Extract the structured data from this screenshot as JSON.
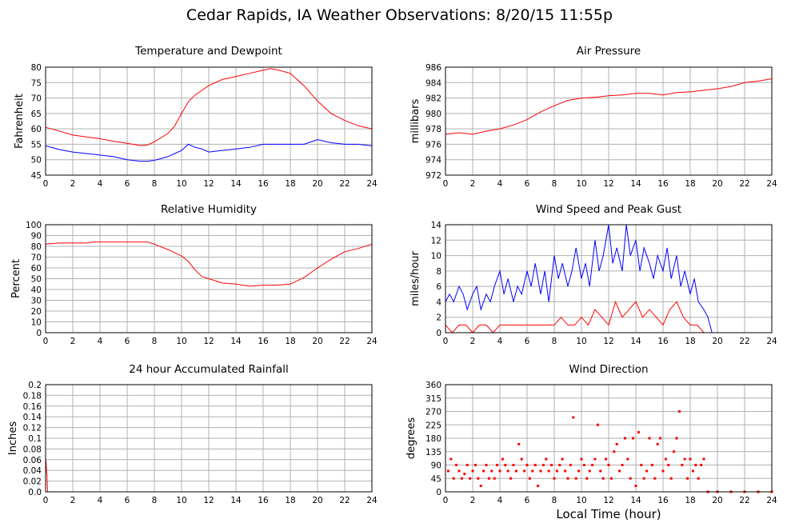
{
  "title": "Cedar Rapids, IA Weather Observations: 8/20/15 11:55p",
  "xaxis_title": "Local Time (hour)",
  "chart_data": [
    {
      "type": "line",
      "title": "Temperature and Dewpoint",
      "ylabel": "Fahrenheit",
      "xlim": [
        0,
        24
      ],
      "ylim": [
        45,
        80
      ],
      "xticks": [
        0,
        2,
        4,
        6,
        8,
        10,
        12,
        14,
        16,
        18,
        20,
        22,
        24
      ],
      "yticks": [
        45,
        50,
        55,
        60,
        65,
        70,
        75,
        80
      ],
      "grid": true,
      "series": [
        {
          "color": "#ff0000",
          "x": [
            0,
            1,
            2,
            3,
            4,
            5,
            6,
            7,
            7.5,
            8,
            9,
            9.5,
            10,
            10.5,
            11,
            12,
            13,
            14,
            15,
            16,
            16.5,
            17,
            18,
            19,
            20,
            21,
            22,
            23,
            24
          ],
          "y": [
            60.5,
            59.3,
            58,
            57.4,
            56.8,
            56,
            55.3,
            54.6,
            54.8,
            55.8,
            58.5,
            61,
            65,
            68.8,
            71,
            74,
            76,
            77,
            78,
            79,
            79.5,
            79.2,
            78,
            74,
            69,
            65,
            62.7,
            61,
            60
          ]
        },
        {
          "color": "#0000ff",
          "x": [
            0,
            1,
            2,
            3,
            4,
            5,
            6,
            7,
            7.5,
            8,
            9,
            9.5,
            10,
            10.5,
            11,
            11.5,
            12,
            13,
            14,
            15,
            16,
            17,
            18,
            19,
            20,
            21,
            22,
            23,
            24
          ],
          "y": [
            54.5,
            53.3,
            52.5,
            52,
            51.5,
            51,
            50,
            49.5,
            49.5,
            49.8,
            51,
            52,
            53,
            55,
            54,
            53.5,
            52.5,
            53,
            53.5,
            54,
            55,
            55,
            55,
            55,
            56.5,
            55.5,
            55,
            55,
            54.5
          ]
        }
      ]
    },
    {
      "type": "line",
      "title": "Air Pressure",
      "ylabel": "millibars",
      "xlim": [
        0,
        24
      ],
      "ylim": [
        972,
        986
      ],
      "xticks": [
        0,
        2,
        4,
        6,
        8,
        10,
        12,
        14,
        16,
        18,
        20,
        22,
        24
      ],
      "yticks": [
        972,
        974,
        976,
        978,
        980,
        982,
        984,
        986
      ],
      "grid": true,
      "series": [
        {
          "color": "#ff0000",
          "x": [
            0,
            1,
            2,
            3,
            4,
            5,
            6,
            7,
            8,
            9,
            10,
            11,
            12,
            13,
            14,
            15,
            16,
            17,
            18,
            19,
            20,
            21,
            22,
            23,
            24
          ],
          "y": [
            977.3,
            977.5,
            977.3,
            977.7,
            978,
            978.5,
            979.2,
            980.2,
            981,
            981.7,
            982,
            982.1,
            982.3,
            982.4,
            982.6,
            982.6,
            982.4,
            982.7,
            982.8,
            983,
            983.2,
            983.5,
            984,
            984.2,
            984.5
          ]
        }
      ]
    },
    {
      "type": "line",
      "title": "Relative Humidity",
      "ylabel": "Percent",
      "xlim": [
        0,
        24
      ],
      "ylim": [
        0,
        100
      ],
      "xticks": [
        0,
        2,
        4,
        6,
        8,
        10,
        12,
        14,
        16,
        18,
        20,
        22,
        24
      ],
      "yticks": [
        0,
        10,
        20,
        30,
        40,
        50,
        60,
        70,
        80,
        90,
        100
      ],
      "grid": true,
      "series": [
        {
          "color": "#ff0000",
          "x": [
            0,
            1,
            2,
            3,
            3.5,
            4,
            5,
            6,
            7,
            7.5,
            8,
            9,
            10,
            10.5,
            11,
            11.5,
            12,
            13,
            14,
            15,
            16,
            17,
            18,
            19,
            20,
            21,
            22,
            23,
            24
          ],
          "y": [
            82,
            83,
            83,
            83,
            84,
            84,
            84,
            84,
            84,
            84,
            82,
            77,
            71,
            66,
            58,
            52,
            50,
            46,
            45,
            43,
            44,
            44,
            45,
            51,
            60,
            68,
            75,
            78,
            82
          ]
        }
      ]
    },
    {
      "type": "line",
      "title": "Wind Speed and Peak Gust",
      "ylabel": "miles/hour",
      "xlim": [
        0,
        24
      ],
      "ylim": [
        0,
        14
      ],
      "xticks": [
        0,
        2,
        4,
        6,
        8,
        10,
        12,
        14,
        16,
        18,
        20,
        22,
        24
      ],
      "yticks": [
        0,
        2,
        4,
        6,
        8,
        10,
        12,
        14
      ],
      "grid": true,
      "series": [
        {
          "color": "#0000ff",
          "x": [
            0,
            0.3,
            0.6,
            1,
            1.3,
            1.6,
            2,
            2.3,
            2.6,
            3,
            3.3,
            3.6,
            4,
            4.3,
            4.6,
            5,
            5.3,
            5.6,
            6,
            6.3,
            6.6,
            7,
            7.3,
            7.6,
            8,
            8.3,
            8.6,
            9,
            9.3,
            9.6,
            10,
            10.3,
            10.6,
            11,
            11.3,
            11.6,
            12,
            12.3,
            12.6,
            13,
            13.3,
            13.6,
            14,
            14.3,
            14.6,
            15,
            15.3,
            15.6,
            16,
            16.3,
            16.6,
            17,
            17.3,
            17.6,
            18,
            18.3,
            18.6,
            19,
            19.3,
            19.6,
            20,
            21,
            22,
            23,
            24
          ],
          "y": [
            4,
            5,
            4,
            6,
            5,
            3,
            5,
            6,
            3,
            5,
            4,
            6,
            8,
            5,
            7,
            4,
            6,
            5,
            8,
            6,
            9,
            5,
            8,
            4,
            10,
            7,
            9,
            6,
            8,
            11,
            7,
            9,
            6,
            12,
            8,
            10,
            14,
            9,
            11,
            8,
            14,
            10,
            12,
            8,
            11,
            9,
            7,
            10,
            8,
            11,
            7,
            10,
            6,
            8,
            5,
            7,
            4,
            3,
            2,
            0,
            0,
            0,
            0,
            0,
            0
          ]
        },
        {
          "color": "#ff0000",
          "x": [
            0,
            0.5,
            1,
            1.5,
            2,
            2.5,
            3,
            3.5,
            4,
            5,
            6,
            7,
            8,
            8.5,
            9,
            9.5,
            10,
            10.5,
            11,
            11.5,
            12,
            12.5,
            13,
            13.5,
            14,
            14.5,
            15,
            15.5,
            16,
            16.5,
            17,
            17.5,
            18,
            18.5,
            19,
            20,
            22,
            24
          ],
          "y": [
            1,
            0,
            1,
            1,
            0,
            1,
            1,
            0,
            1,
            1,
            1,
            1,
            1,
            2,
            1,
            1,
            2,
            1,
            3,
            2,
            1,
            4,
            2,
            3,
            4,
            2,
            3,
            2,
            1,
            3,
            4,
            2,
            1,
            1,
            0,
            0,
            0,
            0
          ]
        }
      ]
    },
    {
      "type": "line",
      "title": "24 hour Accumulated Rainfall",
      "ylabel": "Inches",
      "xlim": [
        0,
        24
      ],
      "ylim": [
        0,
        0.2
      ],
      "xticks": [
        0,
        2,
        4,
        6,
        8,
        10,
        12,
        14,
        16,
        18,
        20,
        22,
        24
      ],
      "yticks": [
        "0.0",
        "0.02",
        "0.04",
        "0.06",
        "0.08",
        "0.1",
        "0.12",
        "0.14",
        "0.16",
        "0.18",
        "0.2"
      ],
      "grid": true,
      "series": [
        {
          "color": "#ff0000",
          "x": [
            0,
            0.1,
            0.15,
            24
          ],
          "y": [
            0.065,
            0.03,
            0,
            0
          ]
        }
      ]
    },
    {
      "type": "scatter",
      "title": "Wind Direction",
      "ylabel": "degrees",
      "xlim": [
        0,
        24
      ],
      "ylim": [
        0,
        360
      ],
      "xticks": [
        0,
        2,
        4,
        6,
        8,
        10,
        12,
        14,
        16,
        18,
        20,
        22,
        24
      ],
      "yticks": [
        0,
        45,
        90,
        135,
        180,
        225,
        270,
        315,
        360
      ],
      "grid": true,
      "series": [
        {
          "color": "#ff0000",
          "x": [
            0.2,
            0.4,
            0.6,
            0.8,
            1,
            1.2,
            1.4,
            1.6,
            1.8,
            2,
            2.2,
            2.4,
            2.6,
            2.8,
            3,
            3.2,
            3.4,
            3.6,
            3.8,
            4,
            4.2,
            4.4,
            4.6,
            4.8,
            5,
            5.2,
            5.4,
            5.6,
            5.8,
            6,
            6.2,
            6.4,
            6.6,
            6.8,
            7,
            7.2,
            7.4,
            7.6,
            7.8,
            8,
            8.2,
            8.4,
            8.6,
            8.8,
            9,
            9.2,
            9.4,
            9.6,
            9.8,
            10,
            10.2,
            10.4,
            10.6,
            10.8,
            11,
            11.2,
            11.4,
            11.6,
            11.8,
            12,
            12.2,
            12.4,
            12.6,
            12.8,
            13,
            13.2,
            13.4,
            13.6,
            13.8,
            14,
            14.2,
            14.4,
            14.6,
            14.8,
            15,
            15.2,
            15.4,
            15.6,
            15.8,
            16,
            16.2,
            16.4,
            16.6,
            16.8,
            17,
            17.2,
            17.4,
            17.6,
            17.8,
            18,
            18.2,
            18.4,
            18.6,
            18.8,
            19
          ],
          "y": [
            70,
            110,
            45,
            90,
            70,
            45,
            60,
            90,
            45,
            70,
            90,
            45,
            20,
            70,
            90,
            45,
            70,
            45,
            90,
            70,
            110,
            90,
            70,
            45,
            90,
            70,
            160,
            110,
            70,
            90,
            45,
            70,
            90,
            20,
            70,
            90,
            110,
            70,
            90,
            45,
            70,
            90,
            110,
            70,
            45,
            90,
            250,
            45,
            70,
            110,
            90,
            45,
            70,
            90,
            110,
            225,
            70,
            45,
            110,
            90,
            45,
            135,
            160,
            70,
            90,
            180,
            110,
            45,
            180,
            20,
            200,
            90,
            45,
            70,
            180,
            90,
            45,
            160,
            180,
            70,
            110,
            90,
            45,
            135,
            180,
            270,
            90,
            110,
            45,
            110,
            70,
            90,
            45,
            90,
            110
          ]
        },
        {
          "color": "#ff0000",
          "x": [
            19.3,
            20,
            21,
            22,
            23,
            24
          ],
          "y": [
            0,
            0,
            0,
            0,
            0,
            0
          ]
        }
      ]
    }
  ]
}
